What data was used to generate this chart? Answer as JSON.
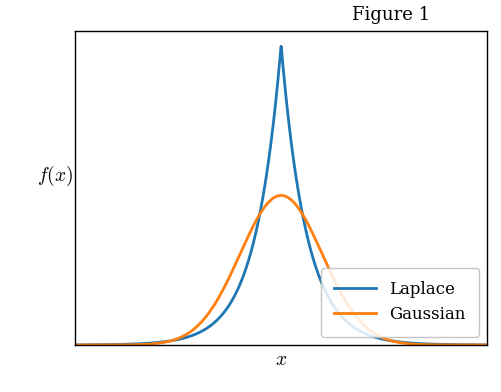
{
  "title": "Figure 1",
  "xlabel": "$x$",
  "ylabel": "$f(x)$",
  "laplace_color": "#1f77b4",
  "gaussian_color": "#ff7f0e",
  "laplace_label": "Laplace",
  "gaussian_label": "Gaussian",
  "laplace_b": 0.5,
  "gaussian_sigma": 0.8,
  "mu": 0.0,
  "x_range": [
    -4,
    4
  ],
  "line_width": 2.0,
  "legend_loc": "lower right",
  "background_color": "#ffffff",
  "title_fontsize": 13,
  "label_fontsize": 14,
  "legend_fontsize": 12
}
